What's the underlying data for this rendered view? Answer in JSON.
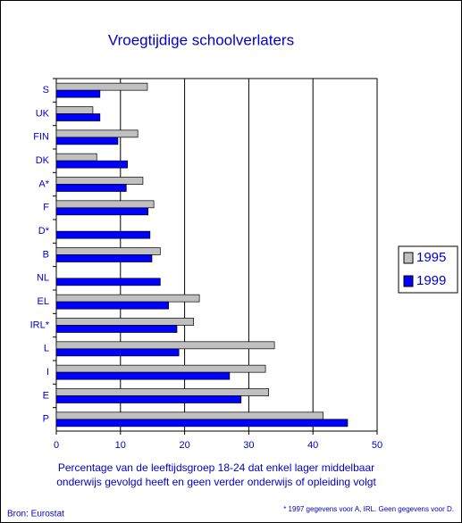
{
  "chart_data": {
    "type": "bar",
    "orientation": "horizontal",
    "title": "Vroegtijdige schoolverlaters",
    "categories": [
      "S",
      "UK",
      "FIN",
      "DK",
      "A*",
      "F",
      "D*",
      "B",
      "NL",
      "EL",
      "IRL*",
      "L",
      "I",
      "E",
      "P"
    ],
    "series": [
      {
        "name": "1995",
        "color": "#c0c0c0",
        "values": [
          14.2,
          5.7,
          12.7,
          6.3,
          13.5,
          15.2,
          null,
          16.2,
          null,
          22.3,
          21.4,
          34.0,
          32.6,
          33.1,
          41.6
        ]
      },
      {
        "name": "1999",
        "color": "#0000ff",
        "values": [
          6.8,
          6.8,
          9.6,
          11.1,
          10.9,
          14.3,
          14.6,
          14.9,
          16.2,
          17.5,
          18.8,
          19.1,
          27.0,
          28.8,
          45.4
        ]
      }
    ],
    "xlim": [
      0,
      50
    ],
    "xticks": [
      0,
      10,
      20,
      30,
      40,
      50
    ],
    "grid": true,
    "xlabel": [
      "Percentage van de leeftijdsgroep 18-24 dat enkel lager middelbaar",
      "onderwijs gevolgd heeft en geen verder onderwijs of opleiding volgt"
    ],
    "source": "Bron: Eurostat",
    "note": "* 1997 gegevens voor A, IRL. Geen gegevens voor D.",
    "legend": "right"
  }
}
